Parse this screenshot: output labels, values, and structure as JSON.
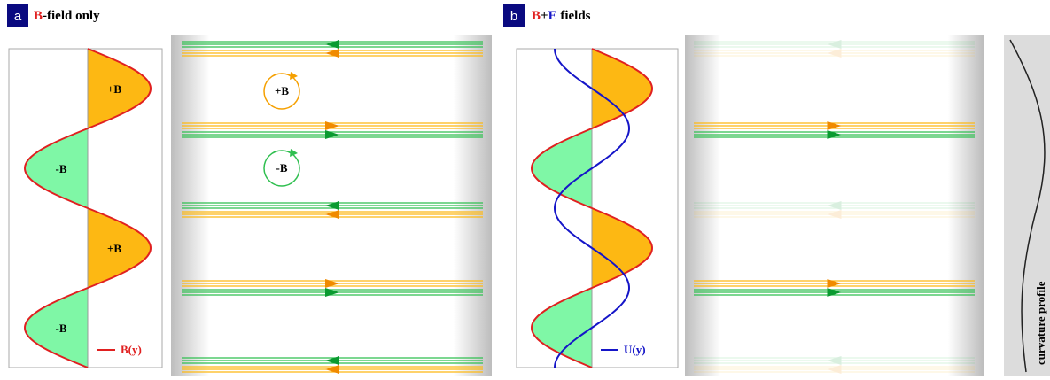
{
  "panel_a": {
    "label": "a",
    "title": {
      "highlight": "B",
      "rest": "-field only"
    },
    "field_labels": [
      "+B",
      "-B",
      "+B",
      "-B"
    ],
    "orbit_labels": [
      "+B",
      "-B"
    ],
    "legend": "B(y)"
  },
  "panel_b": {
    "label": "b",
    "title": {
      "b": "B",
      "plus": "+",
      "e": "E",
      "rest": " fields"
    },
    "legend": "U(y)"
  },
  "curvature_label": "curvature profile"
}
